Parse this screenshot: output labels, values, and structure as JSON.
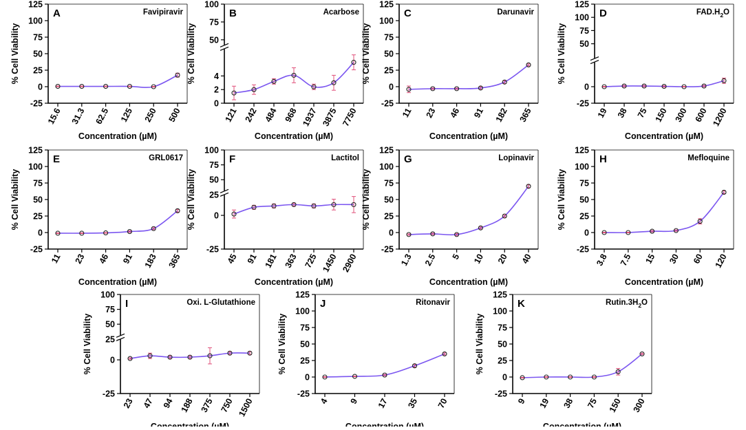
{
  "figure": {
    "y_axis_label": "% Cell Viability",
    "x_axis_label": "Concentration (µM)",
    "colors": {
      "curve": "#7b56f0",
      "marker": "#222222",
      "error": "#e0507a",
      "axis": "#000000"
    }
  },
  "chart_data": [
    {
      "panel": "A",
      "title": "Favipiravir",
      "type": "line",
      "categories": [
        "15.6",
        "31.3",
        "62.5",
        "125",
        "250",
        "500"
      ],
      "values": [
        0.5,
        0.5,
        0.5,
        0.5,
        0,
        17.5
      ],
      "errors": [
        0.5,
        0.5,
        0.5,
        0.5,
        0.5,
        3
      ],
      "yticks": [
        "-25",
        "0",
        "25",
        "50",
        "75",
        "100",
        "125"
      ],
      "ylim": [
        -25,
        125
      ],
      "broken_axis": false
    },
    {
      "panel": "B",
      "title": "Acarbose",
      "type": "line",
      "categories": [
        "121",
        "242",
        "484",
        "968",
        "1937",
        "3875",
        "7750"
      ],
      "values": [
        1.5,
        2,
        3.2,
        4.1,
        2.4,
        3,
        6
      ],
      "errors": [
        1,
        0.7,
        0.4,
        1.1,
        0.4,
        1.1,
        1.1
      ],
      "yticks": [
        "0",
        "2",
        "4",
        "50",
        "75",
        "100"
      ],
      "ylim": [
        0,
        100
      ],
      "broken_axis": true
    },
    {
      "panel": "C",
      "title": "Darunavir",
      "type": "line",
      "categories": [
        "11",
        "23",
        "46",
        "91",
        "182",
        "365"
      ],
      "values": [
        -4,
        -3,
        -3,
        -2,
        7,
        33
      ],
      "errors": [
        5,
        1,
        1,
        2,
        2,
        1.5
      ],
      "yticks": [
        "-25",
        "0",
        "25",
        "50",
        "75",
        "100",
        "125"
      ],
      "ylim": [
        -25,
        125
      ],
      "broken_axis": false
    },
    {
      "panel": "D",
      "title": "FAD.H2O",
      "title_main": "FAD.H",
      "title_sub": "2",
      "title_end": "O",
      "type": "line",
      "categories": [
        "19",
        "38",
        "75",
        "150",
        "300",
        "600",
        "1200"
      ],
      "values": [
        0,
        1,
        1,
        0.5,
        0,
        1,
        9
      ],
      "errors": [
        0.5,
        1,
        1,
        1,
        0.5,
        1,
        4
      ],
      "yticks": [
        "-25",
        "0",
        "50",
        "75",
        "100",
        "125"
      ],
      "ylim": [
        -25,
        125
      ],
      "broken_axis": true
    },
    {
      "panel": "E",
      "title": "GRL0617",
      "type": "line",
      "categories": [
        "11",
        "23",
        "46",
        "91",
        "183",
        "365"
      ],
      "values": [
        -1,
        -1,
        -0.5,
        1.5,
        6,
        33
      ],
      "errors": [
        0.5,
        0.5,
        0.5,
        1,
        1.5,
        2
      ],
      "yticks": [
        "-25",
        "0",
        "25",
        "50",
        "75",
        "100",
        "125"
      ],
      "ylim": [
        -25,
        125
      ],
      "broken_axis": false
    },
    {
      "panel": "F",
      "title": "Lactitol",
      "type": "line",
      "categories": [
        "45",
        "91",
        "181",
        "363",
        "725",
        "1450",
        "2900"
      ],
      "values": [
        1,
        6,
        7,
        8,
        7,
        8,
        8
      ],
      "errors": [
        3,
        1.5,
        1.5,
        1,
        1.5,
        4,
        6
      ],
      "yticks": [
        "-25",
        "0",
        "25",
        "50",
        "75",
        "100",
        "125"
      ],
      "ylim": [
        -25,
        125
      ],
      "broken_axis": true
    },
    {
      "panel": "G",
      "title": "Lopinavir",
      "type": "line",
      "categories": [
        "1.3",
        "2.5",
        "5",
        "10",
        "20",
        "40"
      ],
      "values": [
        -3,
        -2,
        -3,
        7,
        25,
        70
      ],
      "errors": [
        1,
        1,
        1.5,
        1.5,
        1.5,
        2
      ],
      "yticks": [
        "-25",
        "0",
        "25",
        "50",
        "75",
        "100",
        "125"
      ],
      "ylim": [
        -25,
        125
      ],
      "broken_axis": false
    },
    {
      "panel": "H",
      "title": "Mefloquine",
      "type": "line",
      "categories": [
        "3.8",
        "7.5",
        "15",
        "30",
        "60",
        "120"
      ],
      "values": [
        0,
        0,
        2,
        3,
        17,
        61
      ],
      "errors": [
        0.5,
        0.5,
        1,
        1,
        4,
        2
      ],
      "yticks": [
        "-25",
        "0",
        "25",
        "50",
        "75",
        "100",
        "125"
      ],
      "ylim": [
        -25,
        125
      ],
      "broken_axis": false
    },
    {
      "panel": "I",
      "title": "Oxi. L-Glutathione",
      "type": "line",
      "categories": [
        "23",
        "47",
        "94",
        "188",
        "375",
        "750",
        "1500"
      ],
      "values": [
        1,
        3,
        2,
        2,
        3,
        5,
        5
      ],
      "errors": [
        0.5,
        2,
        1,
        1,
        6,
        1,
        1
      ],
      "yticks": [
        "-25",
        "0",
        "25",
        "50",
        "75",
        "100",
        "125"
      ],
      "ylim": [
        -25,
        125
      ],
      "broken_axis": true
    },
    {
      "panel": "J",
      "title": "Ritonavir",
      "type": "line",
      "categories": [
        "4",
        "9",
        "17",
        "35",
        "70"
      ],
      "values": [
        0,
        1,
        3,
        17,
        35
      ],
      "errors": [
        0.5,
        0.5,
        1,
        2,
        1.5
      ],
      "yticks": [
        "-25",
        "0",
        "25",
        "50",
        "75",
        "100",
        "125"
      ],
      "ylim": [
        -25,
        125
      ],
      "broken_axis": false
    },
    {
      "panel": "K",
      "title": "Rutin.3H2O",
      "title_main": "Rutin.3H",
      "title_sub": "2",
      "title_end": "O",
      "type": "line",
      "categories": [
        "9",
        "19",
        "38",
        "75",
        "150",
        "300"
      ],
      "values": [
        -1,
        0,
        0,
        0,
        8,
        35
      ],
      "errors": [
        0.5,
        0.5,
        0.5,
        0.5,
        5,
        1
      ],
      "yticks": [
        "-25",
        "0",
        "25",
        "50",
        "75",
        "100",
        "125"
      ],
      "ylim": [
        -25,
        125
      ],
      "broken_axis": false
    }
  ]
}
